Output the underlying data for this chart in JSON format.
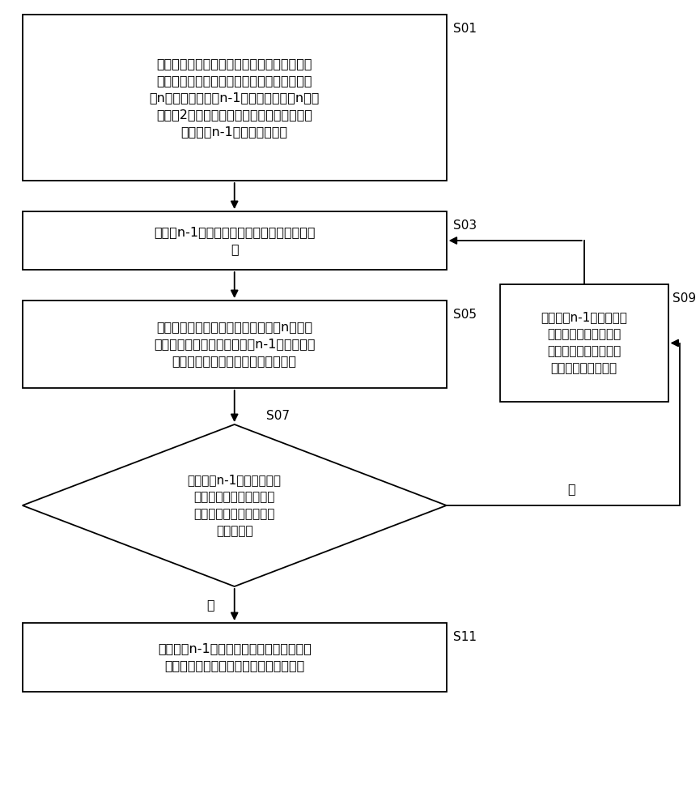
{
  "bg_color": "#ffffff",
  "s01_label": "获取由多流道电机分解得到的单流道模型组的\n参数和三维模型，其中，所述单流道模型组包\n括n个单流道模型和n-1个耦合面，其中n为大\n于等于2的整数，所述单流道模型组参数至少\n包括所述n-1个耦合面的温度",
  "s03_label": "将所述n-1个耦合面的温度设为预设假定温度\n值",
  "s05_label": "根据所述单流道模型组的参数和所述n个单流\n道模型的三维模型，计算得到n-1组相邻两个\n单流道模型对同一耦合面的流入温度",
  "s07_label": "判断所述n-1组的相邻两个\n单流道模型对同一耦合面\n的流入温度之和是否均满\n足预设条件",
  "s09_label": "根据所述n-1组相邻两个\n单流道模型对同一耦合\n面的流入温度，依次修\n正所述耦合面的温度",
  "s11_label": "根据所述n-1个耦合面的温度和所述已知参\n数，计算得到所述多流道电机的温度分布",
  "yes_label": "是",
  "no_label": "否",
  "step_labels": [
    "S01",
    "S03",
    "S05",
    "S07",
    "S09",
    "S11"
  ],
  "lw": 1.3,
  "fontsize_main": 11.5,
  "fontsize_step": 11
}
